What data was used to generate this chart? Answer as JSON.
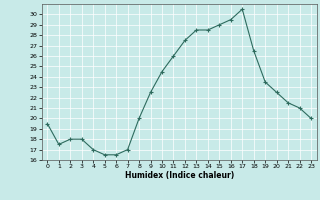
{
  "x": [
    0,
    1,
    2,
    3,
    4,
    5,
    6,
    7,
    8,
    9,
    10,
    11,
    12,
    13,
    14,
    15,
    16,
    17,
    18,
    19,
    20,
    21,
    22,
    23
  ],
  "y": [
    19.5,
    17.5,
    18.0,
    18.0,
    17.0,
    16.5,
    16.5,
    17.0,
    20.0,
    22.5,
    24.5,
    26.0,
    27.5,
    28.5,
    28.5,
    29.0,
    29.5,
    30.5,
    26.5,
    23.5,
    22.5,
    21.5,
    21.0,
    20.0
  ],
  "xlabel": "Humidex (Indice chaleur)",
  "ylim": [
    16,
    31
  ],
  "xlim": [
    -0.5,
    23.5
  ],
  "yticks": [
    16,
    17,
    18,
    19,
    20,
    21,
    22,
    23,
    24,
    25,
    26,
    27,
    28,
    29,
    30
  ],
  "xticks": [
    0,
    1,
    2,
    3,
    4,
    5,
    6,
    7,
    8,
    9,
    10,
    11,
    12,
    13,
    14,
    15,
    16,
    17,
    18,
    19,
    20,
    21,
    22,
    23
  ],
  "line_color": "#2e6b5e",
  "marker": "+",
  "bg_color": "#c8eae8",
  "grid_color": "#ffffff"
}
